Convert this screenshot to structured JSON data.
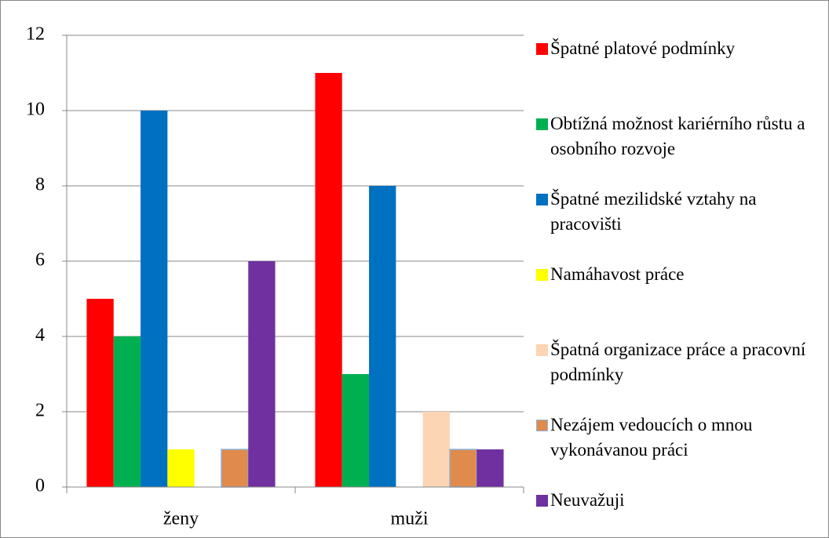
{
  "chart_data": {
    "type": "bar",
    "categories": [
      "ženy",
      "muži"
    ],
    "series": [
      {
        "name": "Špatné platové podmínky",
        "color": "#ff0000",
        "values": [
          5,
          11
        ]
      },
      {
        "name": "Obtížná možnost kariérního růstu a osobního rozvoje",
        "color": "#00b050",
        "values": [
          4,
          3
        ]
      },
      {
        "name": "Špatné mezilidské vztahy na pracovišti",
        "color": "#0070c0",
        "values": [
          10,
          8
        ]
      },
      {
        "name": "Namáhavost práce",
        "color": "#ffff00",
        "values": [
          1,
          0
        ]
      },
      {
        "name": "Špatná organizace práce a pracovní podmínky",
        "color": "#fcd5b5",
        "values": [
          0,
          2
        ]
      },
      {
        "name": "Nezájem vedoucích o mnou vykonávanou práci",
        "color": "#e08a4c",
        "values": [
          1,
          1
        ]
      },
      {
        "name": "Neuvažuji",
        "color": "#7030a0",
        "values": [
          6,
          1
        ]
      }
    ],
    "ylim": [
      0,
      12
    ],
    "yticks": [
      0,
      2,
      4,
      6,
      8,
      10,
      12
    ],
    "grid": true,
    "legend": "right"
  }
}
